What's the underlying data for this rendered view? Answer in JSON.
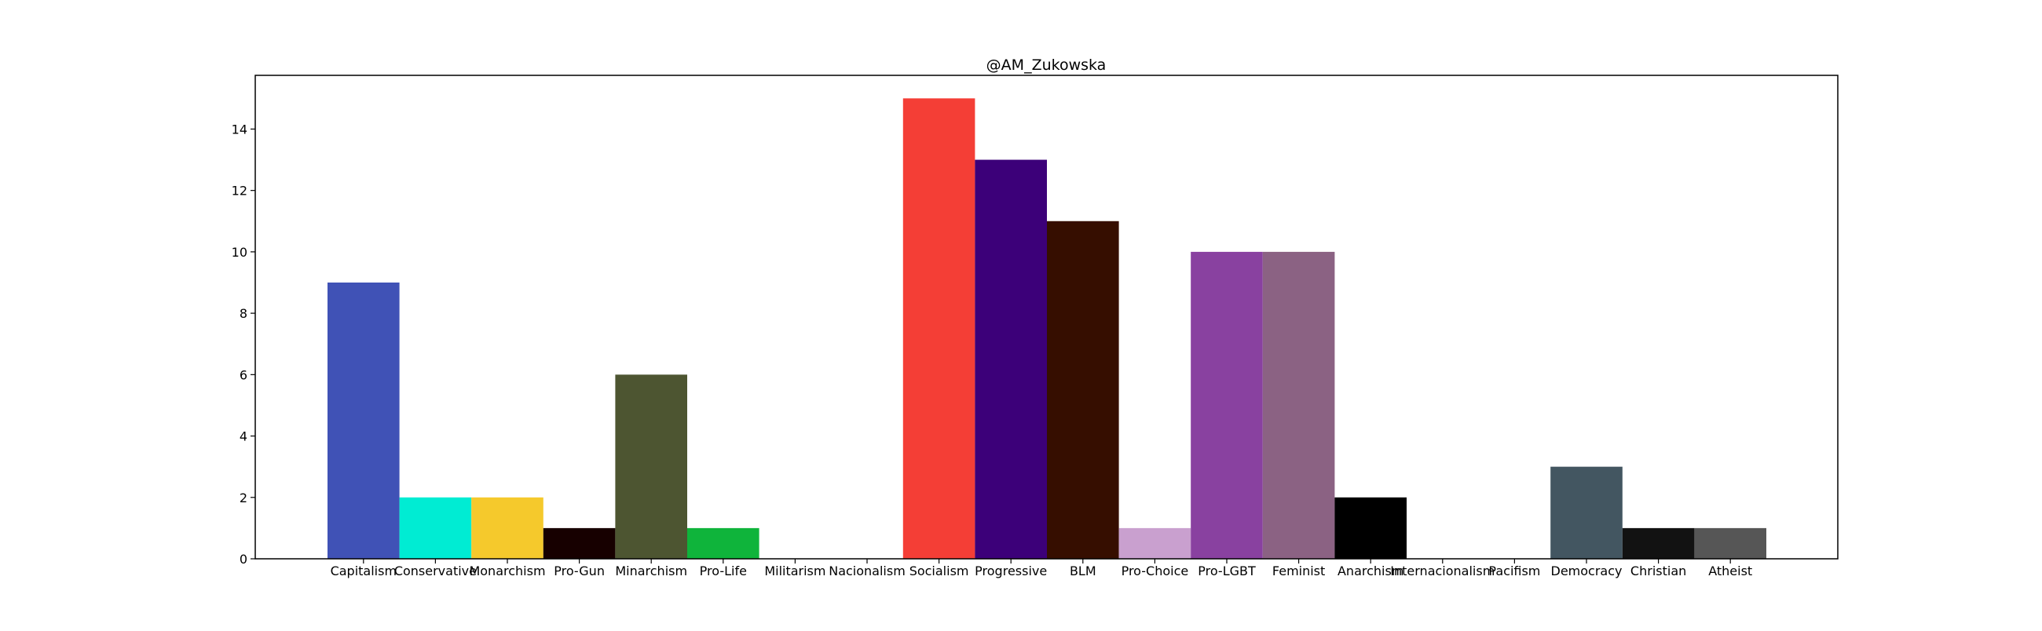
{
  "chart_data": {
    "type": "bar",
    "title": "@AM_Zukowska",
    "xlabel": "",
    "ylabel": "",
    "categories": [
      "Capitalism",
      "Conservative",
      "Monarchism",
      "Pro-Gun",
      "Minarchism",
      "Pro-Life",
      "Militarism",
      "Nacionalism",
      "Socialism",
      "Progressive",
      "BLM",
      "Pro-Choice",
      "Pro-LGBT",
      "Feminist",
      "Anarchism",
      "Internacionalism",
      "Pacifism",
      "Democracy",
      "Christian",
      "Atheist"
    ],
    "values": [
      9,
      2,
      2,
      1,
      6,
      1,
      0,
      0,
      15,
      13,
      11,
      1,
      10,
      10,
      2,
      0,
      0,
      3,
      1,
      1
    ],
    "colors": [
      "#4052b6",
      "#00ecd3",
      "#f5c92c",
      "#170000",
      "#4d5531",
      "#0fb43b",
      "#ffffff",
      "#ffffff",
      "#f43e36",
      "#3c0079",
      "#360e00",
      "#c9a0cf",
      "#8941a0",
      "#8b6283",
      "#000000",
      "#ffffff",
      "#ffffff",
      "#435661",
      "#121212",
      "#565656"
    ],
    "ylim": [
      0,
      15.75
    ],
    "yticks": [
      0,
      2,
      4,
      6,
      8,
      10,
      12,
      14
    ],
    "grid": false,
    "legend": "none"
  }
}
